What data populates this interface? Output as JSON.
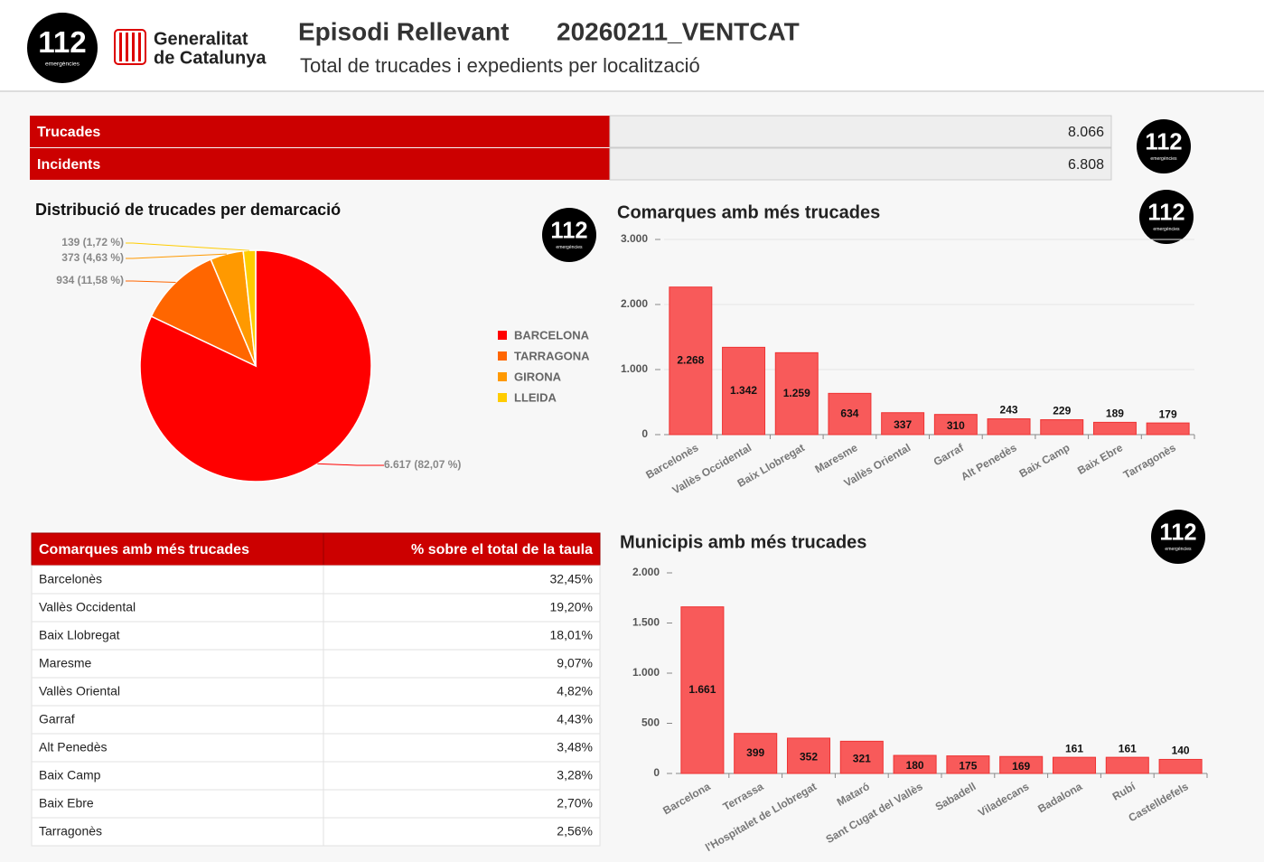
{
  "header": {
    "logo_number": "112",
    "logo_sub": "emergències",
    "gov_line1": "Generalitat",
    "gov_line2": "de Catalunya",
    "title": "Episodi Rellevant",
    "code": "20260211_VENTCAT",
    "subtitle": "Total de trucades i expedients per localització"
  },
  "kpis": [
    {
      "label": "Trucades",
      "value": "8.066"
    },
    {
      "label": "Incidents",
      "value": "6.808"
    }
  ],
  "table": {
    "header": [
      "Comarques amb més trucades",
      "% sobre el total de la taula"
    ],
    "rows": [
      [
        "Barcelonès",
        "32,45%"
      ],
      [
        "Vallès Occidental",
        "19,20%"
      ],
      [
        "Baix Llobregat",
        "18,01%"
      ],
      [
        "Maresme",
        "9,07%"
      ],
      [
        "Vallès Oriental",
        "4,82%"
      ],
      [
        "Garraf",
        "4,43%"
      ],
      [
        "Alt Penedès",
        "3,48%"
      ],
      [
        "Baix Camp",
        "3,28%"
      ],
      [
        "Baix Ebre",
        "2,70%"
      ],
      [
        "Tarragonès",
        "2,56%"
      ]
    ]
  },
  "chart_data": [
    {
      "type": "pie",
      "title": "Distribució de trucades per demarcació",
      "categories": [
        "BARCELONA",
        "TARRAGONA",
        "GIRONA",
        "LLEIDA"
      ],
      "values": [
        6617,
        934,
        373,
        139
      ],
      "value_labels": [
        "6.617 (82,07 %)",
        "934 (11,58 %)",
        "373 (4,63 %)",
        "139 (1,72 %)"
      ],
      "colors": [
        "#ff0000",
        "#ff6600",
        "#ff9900",
        "#ffcc00"
      ],
      "legend": "right"
    },
    {
      "type": "bar",
      "title": "Comarques amb més trucades",
      "categories": [
        "Barcelonès",
        "Vallès Occidental",
        "Baix Llobregat",
        "Maresme",
        "Vallès Oriental",
        "Garraf",
        "Alt Penedès",
        "Baix Camp",
        "Baix Ebre",
        "Tarragonès"
      ],
      "values": [
        2268,
        1342,
        1259,
        634,
        337,
        310,
        243,
        229,
        189,
        179
      ],
      "value_labels": [
        "2.268",
        "1.342",
        "1.259",
        "634",
        "337",
        "310",
        "243",
        "229",
        "189",
        "179"
      ],
      "color": "#f85a5a",
      "ylim": [
        0,
        3000
      ],
      "yticks": [
        0,
        {
          "value": 1000,
          "label": "1.000"
        },
        {
          "value": 2000,
          "label": "2.000"
        },
        {
          "value": 3000,
          "label": "3.000"
        }
      ],
      "grid": true
    },
    {
      "type": "bar",
      "title": "Municipis amb més trucades",
      "categories": [
        "Barcelona",
        "Terrassa",
        "l'Hospitalet de Llobregat",
        "Mataró",
        "Sant Cugat del Vallès",
        "Sabadell",
        "Viladecans",
        "Badalona",
        "Rubí",
        "Castelldefels"
      ],
      "values": [
        1661,
        399,
        352,
        321,
        180,
        175,
        169,
        161,
        161,
        140
      ],
      "value_labels": [
        "1.661",
        "399",
        "352",
        "321",
        "180",
        "175",
        "169",
        "161",
        "161",
        "140"
      ],
      "color": "#f85a5a",
      "ylim": [
        0,
        2000
      ],
      "yticks": [
        0,
        500,
        {
          "value": 1000,
          "label": "1.000"
        },
        {
          "value": 1500,
          "label": "1.500"
        },
        {
          "value": 2000,
          "label": "2.000"
        }
      ],
      "grid": false
    }
  ]
}
